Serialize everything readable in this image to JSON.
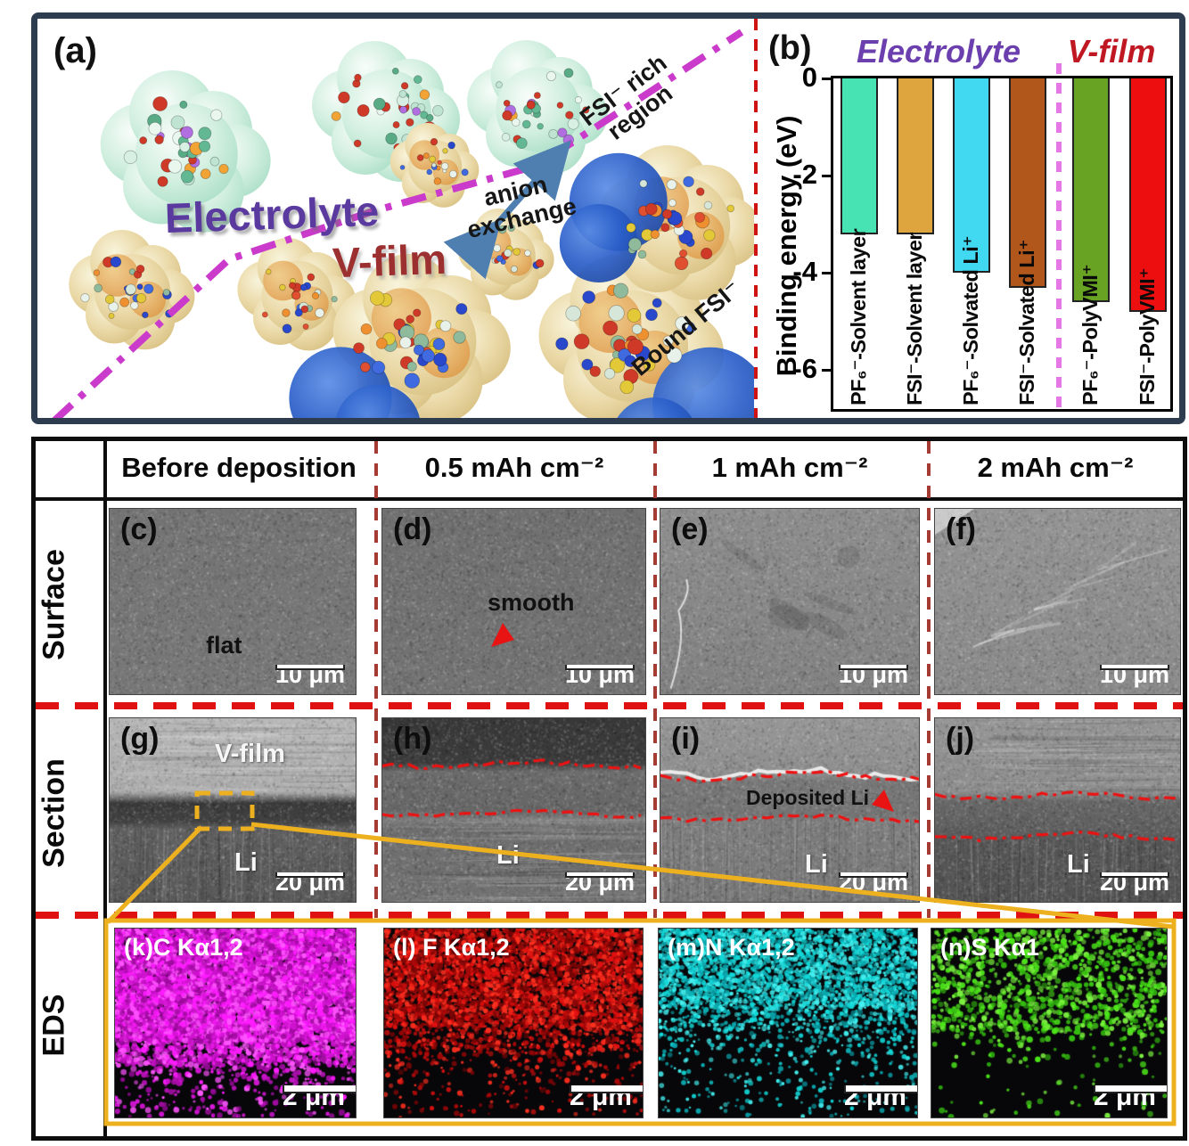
{
  "panel_a": {
    "label": "(a)",
    "electrolyte_label": "Electrolyte",
    "vfilm_label": "V-film",
    "anion_exchange": "anion exchange",
    "fsi_rich_region": "FSI⁻ rich region",
    "bound_fsi": "Bound FSI⁻"
  },
  "panel_b": {
    "label": "(b)",
    "electrolyte_header": "Electrolyte",
    "vfilm_header": "V-film"
  },
  "chart_data": {
    "type": "bar",
    "title": "",
    "xlabel": "",
    "ylabel": "Binding energy (eV)",
    "ylim": [
      -6.8,
      0
    ],
    "yticks": [
      0,
      -2,
      -4,
      -6
    ],
    "grid": false,
    "legend_position": "none",
    "categories": [
      "PF₆⁻-Solvent layer",
      "FSI⁻-Solvent layer",
      "PF₆⁻-Solvated Li⁺",
      "FSI⁻-Solvated Li⁺",
      "PF₆⁻-PolyVMI⁺",
      "FSI⁻-PolyVMI⁺"
    ],
    "values": [
      -3.2,
      -3.2,
      -4.0,
      -4.3,
      -4.6,
      -4.8
    ],
    "bar_colors": [
      "#47e3b2",
      "#dea43e",
      "#41d9f2",
      "#b2571c",
      "#69a323",
      "#ed0f0f"
    ],
    "group_labels": [
      "Electrolyte",
      "V-film"
    ],
    "group_split_after": 4
  },
  "table": {
    "col_headers": [
      "Before deposition",
      "0.5 mAh cm⁻²",
      "1 mAh cm⁻²",
      "2 mAh cm⁻²"
    ],
    "row_headers": [
      "Surface",
      "Section",
      "EDS"
    ],
    "surface_cells": [
      {
        "panel": "(c)",
        "note": "flat",
        "scale": "10 μm"
      },
      {
        "panel": "(d)",
        "note": "smooth",
        "scale": "10 μm"
      },
      {
        "panel": "(e)",
        "note": "",
        "scale": "10 μm"
      },
      {
        "panel": "(f)",
        "note": "",
        "scale": "10 μm"
      }
    ],
    "section_cells": [
      {
        "panel": "(g)",
        "layer_top": "V-film",
        "substrate": "Li",
        "scale": "20 μm"
      },
      {
        "panel": "(h)",
        "substrate": "Li",
        "scale": "20 μm"
      },
      {
        "panel": "(i)",
        "note": "Deposited Li",
        "substrate": "Li",
        "scale": "20 μm"
      },
      {
        "panel": "(j)",
        "substrate": "Li",
        "scale": "20 μm"
      }
    ],
    "eds_cells": [
      {
        "title": "(k)C Kα1,2",
        "scale": "2 μm"
      },
      {
        "title": "(l) F Kα1,2",
        "scale": "2 μm"
      },
      {
        "title": "(m)N Kα1,2",
        "scale": "2 μm"
      },
      {
        "title": "(n)S Kα1",
        "scale": "2 μm"
      }
    ]
  },
  "colors": {
    "frame_navy": "#2e3c50",
    "divider_red": "#cf1212",
    "row_dash_red": "#e01111",
    "column_dash_red": "#a53b33",
    "callout_yellow": "#edb11f",
    "magenta_boundary": "#cb3bcb",
    "electrolyte_purple": "#5b3aa0",
    "vfilm_dark_red": "#9c3030"
  }
}
